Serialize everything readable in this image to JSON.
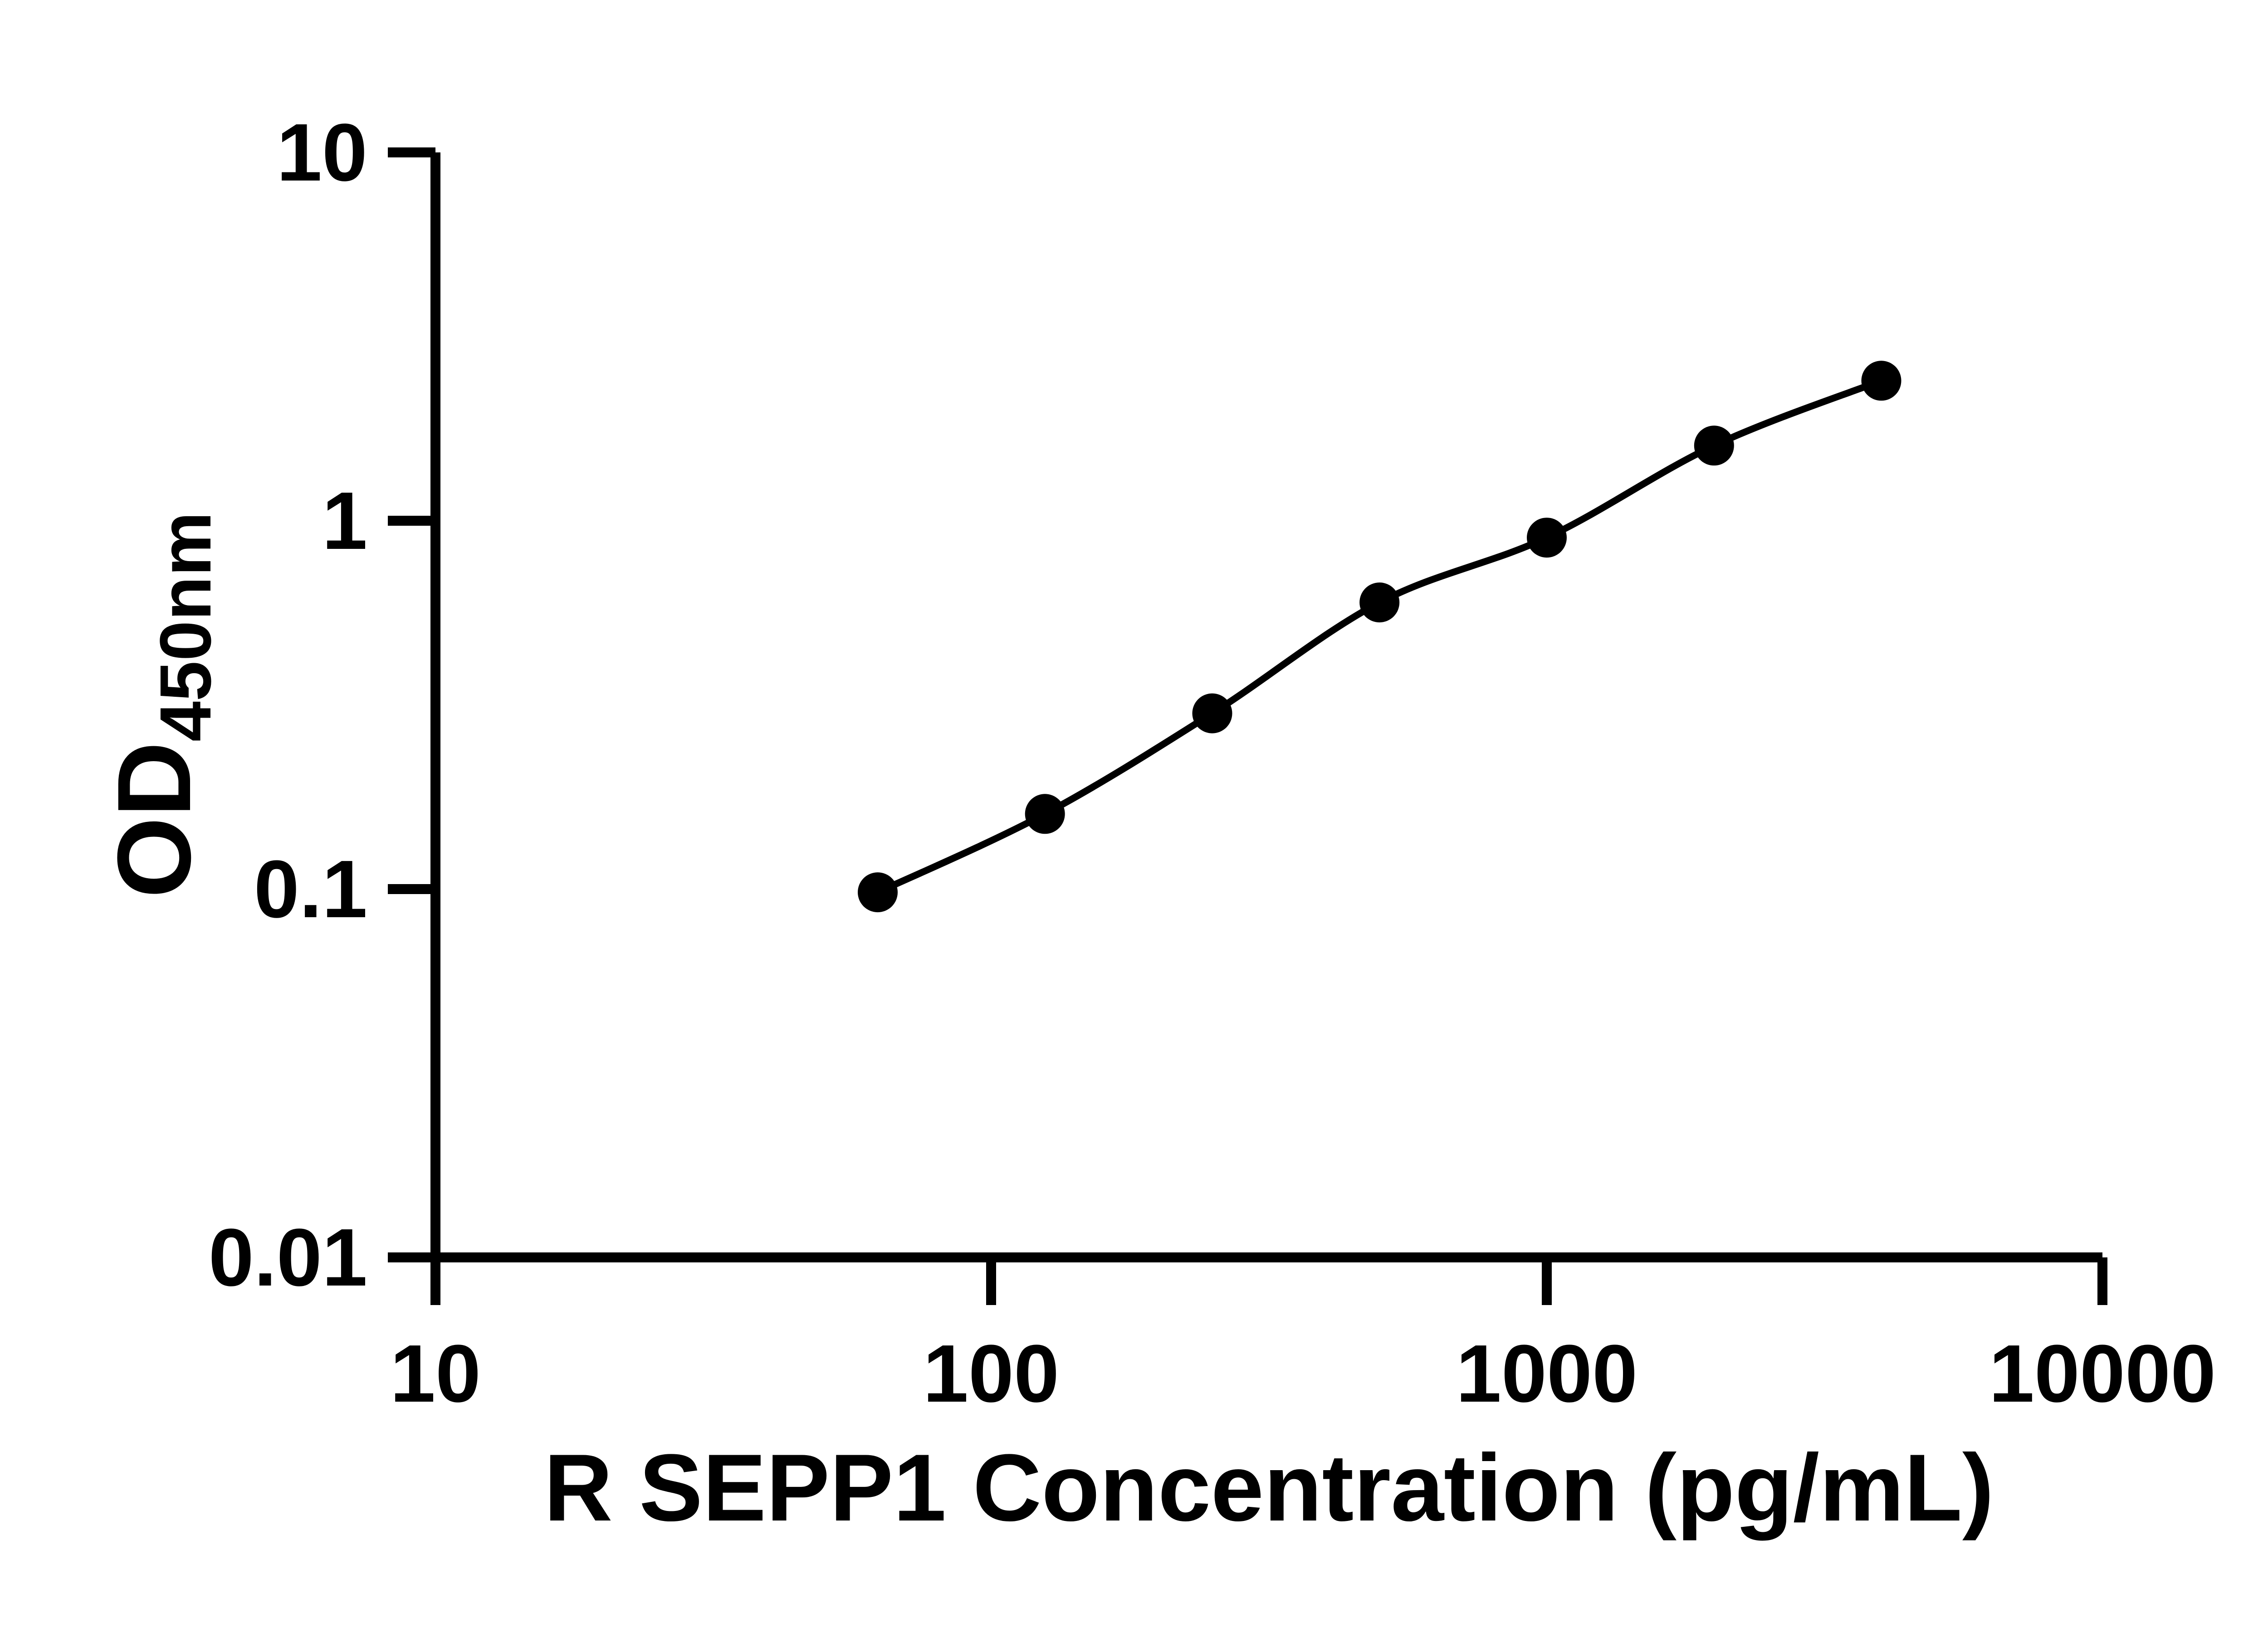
{
  "chart_data": {
    "type": "scatter",
    "title": "",
    "xlabel": "R SEPP1 Concentration (pg/mL)",
    "ylabel_main": "OD",
    "ylabel_sub": "450nm",
    "x_scale": "log10",
    "y_scale": "log10",
    "xlim": [
      10,
      10000
    ],
    "ylim": [
      0.01,
      10
    ],
    "x_ticks": [
      10,
      100,
      1000,
      10000
    ],
    "x_tick_labels": [
      "10",
      "100",
      "1000",
      "10000"
    ],
    "y_ticks": [
      0.01,
      0.1,
      1,
      10
    ],
    "y_tick_labels": [
      "0.01",
      "0.1",
      "1",
      "10"
    ],
    "grid": "off",
    "legend": "none",
    "points": [
      {
        "x": 62.5,
        "y": 0.098
      },
      {
        "x": 125,
        "y": 0.16
      },
      {
        "x": 250,
        "y": 0.3
      },
      {
        "x": 500,
        "y": 0.6
      },
      {
        "x": 1000,
        "y": 0.9
      },
      {
        "x": 2000,
        "y": 1.6
      },
      {
        "x": 4000,
        "y": 2.4
      }
    ],
    "colors": {
      "line": "#000000",
      "marker": "#000000",
      "axis": "#000000",
      "background": "#ffffff"
    }
  }
}
